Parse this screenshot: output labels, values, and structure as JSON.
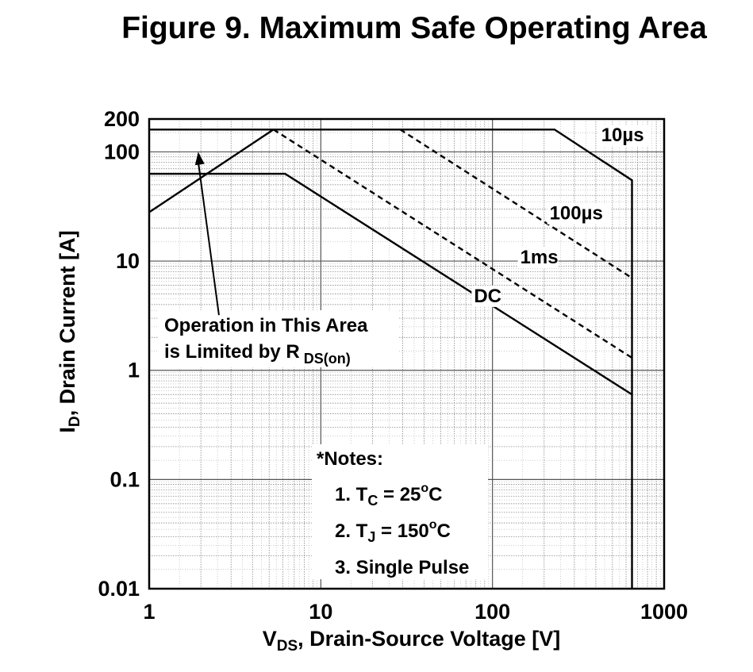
{
  "chart_data": {
    "type": "line",
    "title": "Figure 9. Maximum Safe Operating Area",
    "xlabel": {
      "main": "V",
      "sub": "DS",
      "rest": ", Drain-Source Voltage [V]"
    },
    "ylabel": {
      "main": "I",
      "sub": "D",
      "rest": ", Drain Current [A]"
    },
    "x_scale": "log",
    "y_scale": "log",
    "xlim": [
      1,
      1000
    ],
    "ylim": [
      0.01,
      200
    ],
    "x_ticks": [
      {
        "value": 1,
        "label": "1"
      },
      {
        "value": 10,
        "label": "10"
      },
      {
        "value": 100,
        "label": "100"
      },
      {
        "value": 1000,
        "label": "1000"
      }
    ],
    "y_ticks": [
      {
        "value": 0.01,
        "label": "0.01"
      },
      {
        "value": 0.1,
        "label": "0.1"
      },
      {
        "value": 1,
        "label": "1"
      },
      {
        "value": 10,
        "label": "10"
      },
      {
        "value": 100,
        "label": "100"
      },
      {
        "value": 200,
        "label": "200"
      }
    ],
    "grid": true,
    "series": [
      {
        "name": "10µs",
        "style": "solid",
        "points": [
          [
            1,
            160
          ],
          [
            230,
            160
          ],
          [
            650,
            55
          ],
          [
            650,
            0.01
          ]
        ]
      },
      {
        "name": "100µs",
        "style": "dashed",
        "points": [
          [
            29,
            160
          ],
          [
            650,
            7
          ]
        ]
      },
      {
        "name": "1ms",
        "style": "dashed",
        "points": [
          [
            5.3,
            160
          ],
          [
            650,
            1.3
          ]
        ]
      },
      {
        "name": "DC",
        "style": "solid",
        "points": [
          [
            1,
            63
          ],
          [
            6.2,
            63
          ],
          [
            650,
            0.6
          ]
        ]
      },
      {
        "name": "",
        "style": "solid",
        "points": [
          [
            1,
            28
          ],
          [
            5.3,
            160
          ]
        ]
      }
    ],
    "series_labels": [
      {
        "text": "10µs",
        "x": 430,
        "y": 125
      },
      {
        "text": "100µs",
        "x": 215,
        "y": 24
      },
      {
        "text": "1ms",
        "x": 145,
        "y": 9.5
      },
      {
        "text": "DC",
        "x": 78,
        "y": 4.2
      }
    ],
    "annotation": {
      "line1": "Operation in This Area",
      "line2_main": "is Limited by R",
      "line2_sub": "DS(on)",
      "arrow_from": [
        2.55,
        3.2
      ],
      "arrow_to": [
        1.93,
        100
      ]
    },
    "notes": {
      "heading": "*Notes:",
      "items": [
        {
          "prefix": "1. T",
          "sub": "C",
          "mid": " = 25",
          "sup": "o",
          "suffix": "C"
        },
        {
          "prefix": "2. T",
          "sub": "J",
          "mid": " = 150",
          "sup": "o",
          "suffix": "C"
        },
        {
          "prefix": "3. Single Pulse",
          "sub": "",
          "mid": "",
          "sup": "",
          "suffix": ""
        }
      ]
    }
  }
}
